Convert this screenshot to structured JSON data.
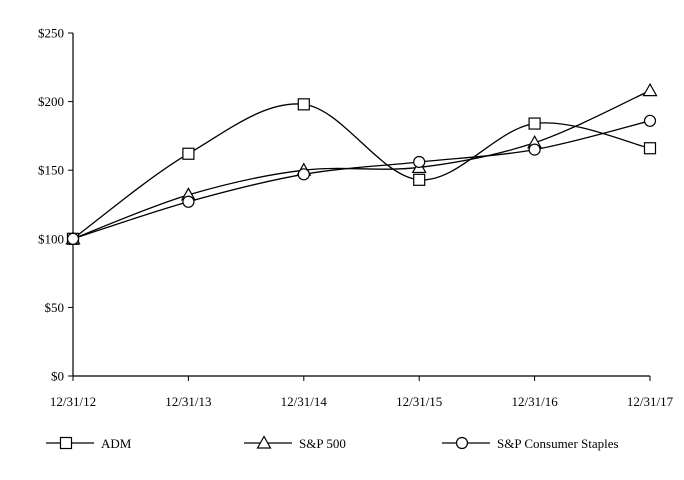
{
  "chart_data": {
    "type": "line",
    "title": "",
    "xlabel": "",
    "ylabel": "",
    "categories": [
      "12/31/12",
      "12/31/13",
      "12/31/14",
      "12/31/15",
      "12/31/16",
      "12/31/17"
    ],
    "ylim": [
      0,
      250
    ],
    "yticks": [
      0,
      50,
      100,
      150,
      200,
      250
    ],
    "ytick_labels": [
      "$0",
      "$50",
      "$100",
      "$150",
      "$200",
      "$250"
    ],
    "grid": false,
    "legend_position": "bottom",
    "series": [
      {
        "name": "ADM",
        "marker": "square",
        "values": [
          100,
          162,
          198,
          143,
          184,
          166
        ]
      },
      {
        "name": "S&P 500",
        "marker": "triangle",
        "values": [
          100,
          132,
          150,
          152,
          170,
          208
        ]
      },
      {
        "name": "S&P Consumer Staples",
        "marker": "circle",
        "values": [
          100,
          127,
          147,
          156,
          165,
          186
        ]
      }
    ]
  }
}
